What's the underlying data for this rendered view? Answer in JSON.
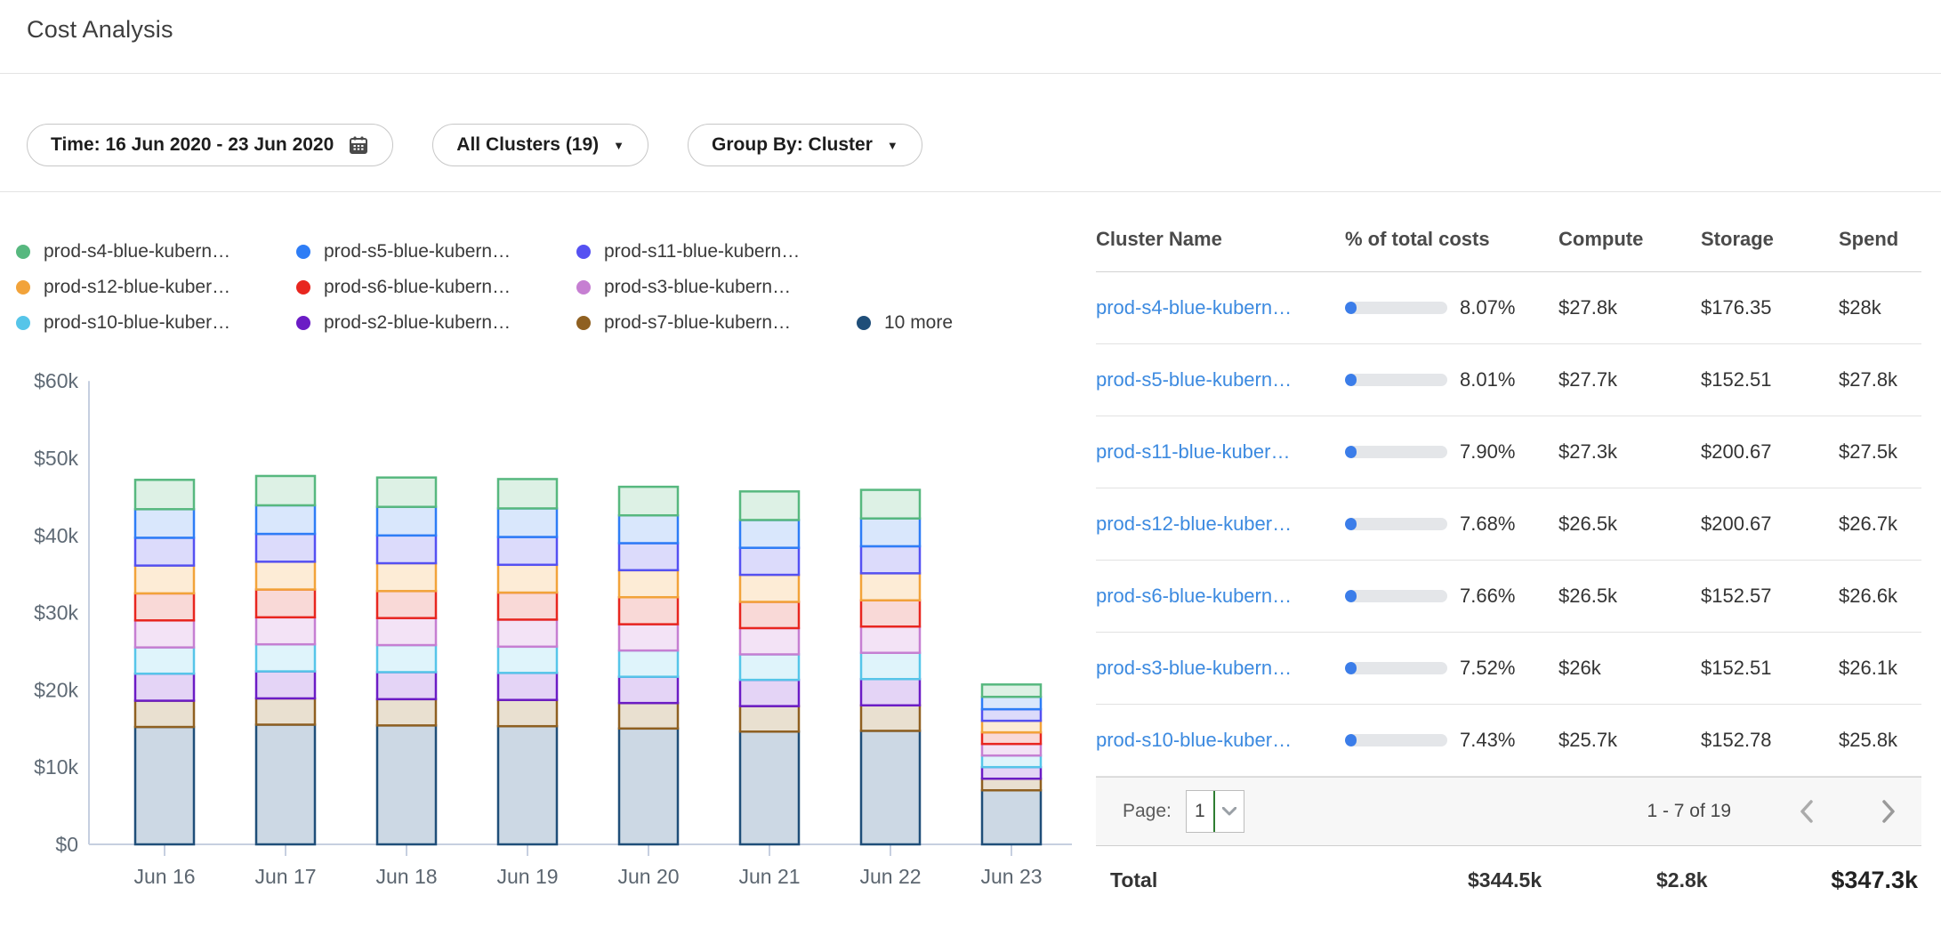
{
  "header": {
    "title": "Cost Analysis"
  },
  "filters": {
    "time_label": "Time: 16 Jun 2020 - 23 Jun 2020",
    "clusters_label": "All Clusters (19)",
    "group_by_label": "Group By: Cluster"
  },
  "chart_data": {
    "type": "bar",
    "stacked": true,
    "title": "",
    "xlabel": "",
    "ylabel": "",
    "unit": "USD thousands per day",
    "ylim": [
      0,
      60000
    ],
    "y_tick_labels": [
      "$0",
      "$10k",
      "$20k",
      "$30k",
      "$40k",
      "$50k",
      "$60k"
    ],
    "grid": false,
    "legend_position": "top",
    "categories": [
      "Jun 16",
      "Jun 17",
      "Jun 18",
      "Jun 19",
      "Jun 20",
      "Jun 21",
      "Jun 22",
      "Jun 23"
    ],
    "series": [
      {
        "name": "prod-s4-blue-kubern…",
        "color": "#57b87f",
        "fill": "#ddf1e5",
        "values": [
          3.8,
          3.8,
          3.8,
          3.8,
          3.7,
          3.7,
          3.7,
          1.6
        ]
      },
      {
        "name": "prod-s5-blue-kubern…",
        "color": "#2e7df6",
        "fill": "#d9e7fc",
        "values": [
          3.7,
          3.7,
          3.7,
          3.7,
          3.6,
          3.6,
          3.6,
          1.6
        ]
      },
      {
        "name": "prod-s11-blue-kubern…",
        "color": "#5551f2",
        "fill": "#dcdbfb",
        "values": [
          3.6,
          3.6,
          3.6,
          3.6,
          3.5,
          3.5,
          3.5,
          1.5
        ]
      },
      {
        "name": "prod-s12-blue-kuber…",
        "color": "#f2a33a",
        "fill": "#fdecd6",
        "values": [
          3.6,
          3.6,
          3.6,
          3.6,
          3.5,
          3.5,
          3.5,
          1.5
        ]
      },
      {
        "name": "prod-s6-blue-kubern…",
        "color": "#e8261f",
        "fill": "#f9d9d7",
        "values": [
          3.5,
          3.6,
          3.5,
          3.5,
          3.5,
          3.4,
          3.4,
          1.5
        ]
      },
      {
        "name": "prod-s3-blue-kubern…",
        "color": "#c67fd2",
        "fill": "#f3e3f6",
        "values": [
          3.5,
          3.5,
          3.5,
          3.5,
          3.4,
          3.4,
          3.4,
          1.5
        ]
      },
      {
        "name": "prod-s10-blue-kuber…",
        "color": "#56c5e9",
        "fill": "#dff4fb",
        "values": [
          3.4,
          3.5,
          3.5,
          3.4,
          3.4,
          3.3,
          3.4,
          1.5
        ]
      },
      {
        "name": "prod-s2-blue-kubern…",
        "color": "#6b1cc5",
        "fill": "#e4d4f6",
        "values": [
          3.5,
          3.5,
          3.5,
          3.5,
          3.4,
          3.4,
          3.4,
          1.5
        ]
      },
      {
        "name": "prod-s7-blue-kubern…",
        "color": "#8f6021",
        "fill": "#e9e0d0",
        "values": [
          3.4,
          3.4,
          3.4,
          3.4,
          3.3,
          3.3,
          3.3,
          1.5
        ]
      },
      {
        "name": "10 more",
        "color": "#1f4e79",
        "fill": "#ccd8e4",
        "values": [
          15.2,
          15.5,
          15.4,
          15.3,
          15.0,
          14.6,
          14.7,
          7.0
        ]
      }
    ]
  },
  "table": {
    "columns": [
      "Cluster Name",
      "% of total costs",
      "Compute",
      "Storage",
      "Spend"
    ],
    "rows": [
      {
        "name": "prod-s4-blue-kubern…",
        "pct": "8.07%",
        "pct_value": 8.07,
        "compute": "$27.8k",
        "storage": "$176.35",
        "spend": "$28k"
      },
      {
        "name": "prod-s5-blue-kubern…",
        "pct": "8.01%",
        "pct_value": 8.01,
        "compute": "$27.7k",
        "storage": "$152.51",
        "spend": "$27.8k"
      },
      {
        "name": "prod-s11-blue-kuber…",
        "pct": "7.90%",
        "pct_value": 7.9,
        "compute": "$27.3k",
        "storage": "$200.67",
        "spend": "$27.5k"
      },
      {
        "name": "prod-s12-blue-kuber…",
        "pct": "7.68%",
        "pct_value": 7.68,
        "compute": "$26.5k",
        "storage": "$200.67",
        "spend": "$26.7k"
      },
      {
        "name": "prod-s6-blue-kubern…",
        "pct": "7.66%",
        "pct_value": 7.66,
        "compute": "$26.5k",
        "storage": "$152.57",
        "spend": "$26.6k"
      },
      {
        "name": "prod-s3-blue-kubern…",
        "pct": "7.52%",
        "pct_value": 7.52,
        "compute": "$26k",
        "storage": "$152.51",
        "spend": "$26.1k"
      },
      {
        "name": "prod-s10-blue-kuber…",
        "pct": "7.43%",
        "pct_value": 7.43,
        "compute": "$25.7k",
        "storage": "$152.78",
        "spend": "$25.8k"
      }
    ],
    "pagination": {
      "page_label": "Page:",
      "page_value": "1",
      "range": "1 - 7 of 19"
    },
    "total": {
      "label": "Total",
      "compute": "$344.5k",
      "storage": "$2.8k",
      "spend": "$347.3k"
    }
  },
  "colors": {
    "link": "#3c8ae0",
    "progress_fill": "#3b7de9",
    "progress_track": "#e4e6e9",
    "axis": "#c6cfe0",
    "page_select_divider": "#2f7d32"
  }
}
